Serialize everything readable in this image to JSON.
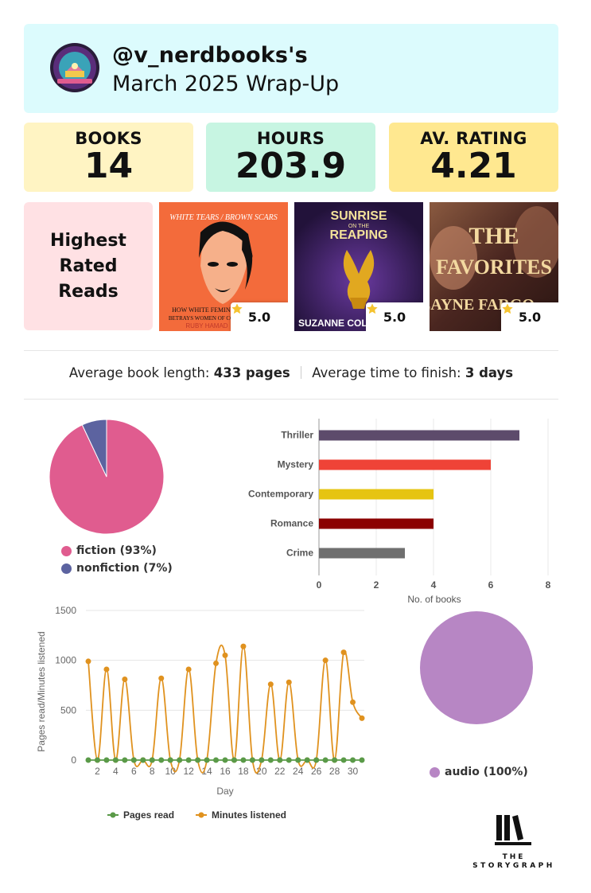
{
  "header": {
    "username": "@v_nerdbooks's",
    "title": "March 2025 Wrap-Up",
    "avatar_icon": "nerdbooks-logo-icon"
  },
  "stats": {
    "books_label": "BOOKS",
    "books_value": "14",
    "hours_label": "HOURS",
    "hours_value": "203.9",
    "rating_label": "AV. RATING",
    "rating_value": "4.21"
  },
  "highest_rated": {
    "label": "Highest Rated Reads",
    "books": [
      {
        "cover_text_top": "WHITE TEARS / BROWN SCARS",
        "cover_text_mid": "HOW WHITE FEMINISM",
        "cover_text_low": "BETRAYS WOMEN OF COLOR",
        "cover_author": "RUBY HAMAD",
        "rating": "5.0",
        "bg": "#f36b3b"
      },
      {
        "cover_text_top": "SUNRISE",
        "cover_text_on": "ON THE",
        "cover_text_mid": "REAPING",
        "cover_author": "SUZANNE COLLINS",
        "rating": "5.0",
        "bg": "#3a1d5a"
      },
      {
        "cover_text_top": "THE",
        "cover_text_mid": "FAVORITES",
        "cover_author": "LAYNE FARGO",
        "rating": "5.0",
        "bg": "#5a2a20"
      }
    ]
  },
  "averages": {
    "length_label": "Average book length:",
    "length_value": "433 pages",
    "time_label": "Average time to finish:",
    "time_value": "3 days"
  },
  "colors": {
    "fiction": "#e05c8f",
    "nonfiction": "#5c63a0",
    "audio": "#b786c4",
    "pages": "#5a9a48",
    "minutes": "#e0921f"
  },
  "chart_data": [
    {
      "type": "pie",
      "labels": [
        "fiction (93%)",
        "nonfiction (7%)"
      ],
      "values": [
        93,
        7
      ],
      "colors": [
        "#e05c8f",
        "#5c63a0"
      ],
      "legend": "bottom"
    },
    {
      "type": "bar",
      "orientation": "horizontal",
      "categories": [
        "Thriller",
        "Mystery",
        "Contemporary",
        "Romance",
        "Crime"
      ],
      "values": [
        7,
        6,
        4,
        4,
        3
      ],
      "colors": [
        "#5d4b6b",
        "#ef4337",
        "#e6c412",
        "#8b0000",
        "#6f6f6f"
      ],
      "xlabel": "No. of books",
      "xticks": [
        "0",
        "2",
        "4",
        "6",
        "8"
      ],
      "xlim": [
        0,
        8
      ],
      "grid": true
    },
    {
      "type": "line",
      "x": [
        1,
        2,
        3,
        4,
        5,
        6,
        7,
        8,
        9,
        10,
        11,
        12,
        13,
        14,
        15,
        16,
        17,
        18,
        19,
        20,
        21,
        22,
        23,
        24,
        25,
        26,
        27,
        28,
        29,
        30,
        31
      ],
      "xticks": [
        "2",
        "4",
        "6",
        "8",
        "10",
        "12",
        "14",
        "16",
        "18",
        "20",
        "22",
        "24",
        "26",
        "28",
        "30"
      ],
      "yticks": [
        "0",
        "500",
        "1000",
        "1500"
      ],
      "ylim": [
        0,
        1500
      ],
      "xlabel": "Day",
      "ylabel": "Pages read/Minutes listened",
      "series": [
        {
          "name": "Pages read",
          "color": "#5a9a48",
          "values": [
            0,
            0,
            0,
            0,
            0,
            0,
            0,
            0,
            0,
            0,
            0,
            0,
            0,
            0,
            0,
            0,
            0,
            0,
            0,
            0,
            0,
            0,
            0,
            0,
            0,
            0,
            0,
            0,
            0,
            0,
            0
          ]
        },
        {
          "name": "Minutes listened",
          "color": "#e0921f",
          "values": [
            990,
            0,
            910,
            0,
            810,
            0,
            0,
            0,
            820,
            0,
            0,
            910,
            0,
            0,
            970,
            1050,
            0,
            1140,
            0,
            0,
            760,
            0,
            780,
            0,
            0,
            0,
            1000,
            0,
            1080,
            580,
            420
          ]
        }
      ],
      "legend": "bottom",
      "grid": true
    },
    {
      "type": "pie",
      "labels": [
        "audio (100%)"
      ],
      "values": [
        100
      ],
      "colors": [
        "#b786c4"
      ],
      "legend": "bottom"
    }
  ],
  "logo": {
    "the": "THE",
    "storygraph": "STORYGRAPH",
    "icon": "storygraph-books-icon"
  }
}
